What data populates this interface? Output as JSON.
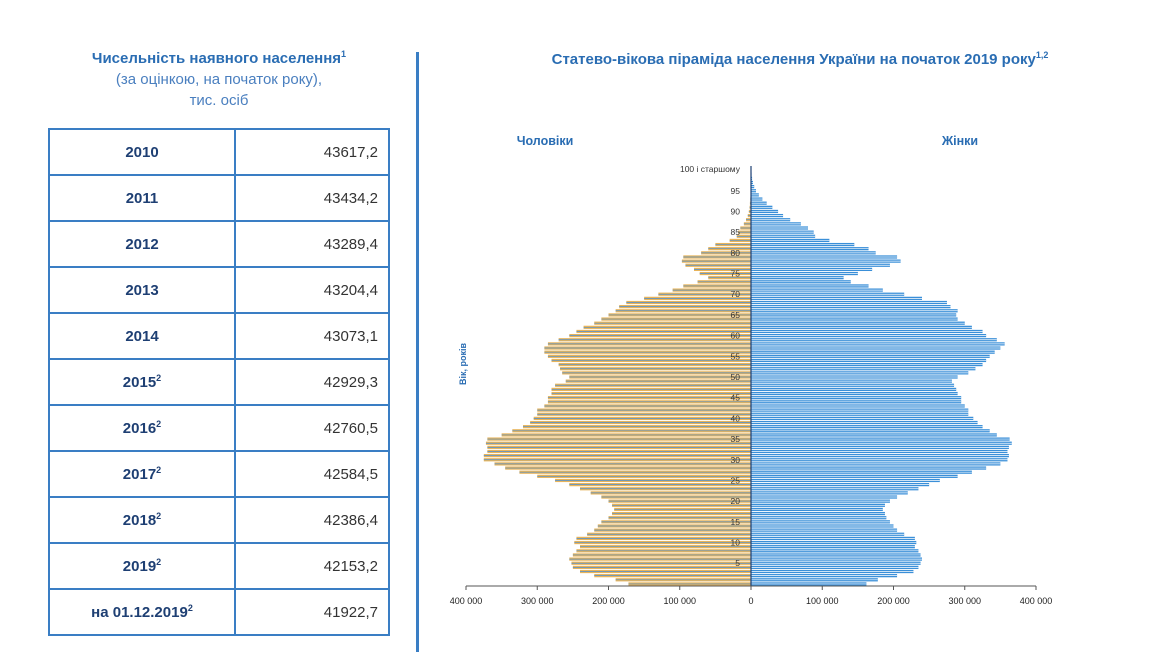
{
  "left": {
    "title_line1": "Чисельність наявного населення",
    "title_sup": "1",
    "title_line2": "(за оцінкою, на початок року),",
    "title_line3": "тис. осіб"
  },
  "table": {
    "rows": [
      {
        "year": "2010",
        "sup": "",
        "value": "43617,2"
      },
      {
        "year": "2011",
        "sup": "",
        "value": "43434,2"
      },
      {
        "year": "2012",
        "sup": "",
        "value": "43289,4"
      },
      {
        "year": "2013",
        "sup": "",
        "value": "43204,4"
      },
      {
        "year": "2014",
        "sup": "",
        "value": "43073,1"
      },
      {
        "year": "2015",
        "sup": "2",
        "value": "42929,3"
      },
      {
        "year": "2016",
        "sup": "2",
        "value": "42760,5"
      },
      {
        "year": "2017",
        "sup": "2",
        "value": "42584,5"
      },
      {
        "year": "2018",
        "sup": "2",
        "value": "42386,4"
      },
      {
        "year": "2019",
        "sup": "2",
        "value": "42153,2"
      },
      {
        "year": "на 01.12.2019",
        "sup": "2",
        "value": "41922,7"
      }
    ]
  },
  "colors": {
    "accent": "#2a6db3",
    "male_fill": "#e8b45a",
    "male_stripe": "#4a8ed4",
    "female_fill": "#3a8fd8",
    "female_stripe": "#ffffff"
  },
  "chart_data": {
    "type": "bar",
    "orientation": "horizontal-pyramid",
    "title": "Статево-вікова піраміда населення України на початок 2019 року",
    "title_sup": "1,2",
    "male_label": "Чоловіки",
    "female_label": "Жінки",
    "ylabel": "Вік, років",
    "top_age_label": "100 і старшому",
    "age_ticks": [
      "5",
      "10",
      "15",
      "20",
      "25",
      "30",
      "35",
      "40",
      "45",
      "50",
      "55",
      "60",
      "65",
      "70",
      "75",
      "80",
      "85",
      "90",
      "95"
    ],
    "x_ticks": [
      "400 000",
      "300 000",
      "200 000",
      "100 000",
      "0",
      "100 000",
      "200 000",
      "300 000",
      "400 000"
    ],
    "xlim": [
      -400000,
      400000
    ],
    "ages": [
      0,
      1,
      2,
      3,
      4,
      5,
      6,
      7,
      8,
      9,
      10,
      11,
      12,
      13,
      14,
      15,
      16,
      17,
      18,
      19,
      20,
      21,
      22,
      23,
      24,
      25,
      26,
      27,
      28,
      29,
      30,
      31,
      32,
      33,
      34,
      35,
      36,
      37,
      38,
      39,
      40,
      41,
      42,
      43,
      44,
      45,
      46,
      47,
      48,
      49,
      50,
      51,
      52,
      53,
      54,
      55,
      56,
      57,
      58,
      59,
      60,
      61,
      62,
      63,
      64,
      65,
      66,
      67,
      68,
      69,
      70,
      71,
      72,
      73,
      74,
      75,
      76,
      77,
      78,
      79,
      80,
      81,
      82,
      83,
      84,
      85,
      86,
      87,
      88,
      89,
      90,
      91,
      92,
      93,
      94,
      95,
      96,
      97,
      98,
      99,
      100
    ],
    "series": [
      {
        "name": "Чоловіки",
        "values": [
          172000,
          190000,
          220000,
          240000,
          250000,
          252000,
          255000,
          250000,
          245000,
          240000,
          248000,
          245000,
          230000,
          220000,
          215000,
          210000,
          200000,
          195000,
          192000,
          195000,
          200000,
          210000,
          225000,
          240000,
          255000,
          275000,
          300000,
          325000,
          345000,
          360000,
          375000,
          375000,
          370000,
          370000,
          372000,
          370000,
          350000,
          335000,
          320000,
          310000,
          305000,
          300000,
          300000,
          290000,
          285000,
          285000,
          280000,
          280000,
          275000,
          260000,
          255000,
          265000,
          268000,
          270000,
          280000,
          285000,
          290000,
          290000,
          285000,
          270000,
          255000,
          245000,
          235000,
          220000,
          210000,
          200000,
          190000,
          185000,
          175000,
          150000,
          130000,
          110000,
          95000,
          75000,
          60000,
          72000,
          80000,
          92000,
          97000,
          95000,
          70000,
          60000,
          50000,
          30000,
          20000,
          18000,
          15000,
          10000,
          7000,
          4500,
          3000,
          2000,
          1500,
          1000,
          600,
          400,
          250,
          150,
          100,
          50,
          40
        ]
      },
      {
        "name": "Жінки",
        "values": [
          162000,
          178000,
          205000,
          228000,
          235000,
          238000,
          240000,
          238000,
          235000,
          230000,
          232000,
          230000,
          215000,
          205000,
          200000,
          195000,
          190000,
          188000,
          185000,
          188000,
          195000,
          205000,
          220000,
          235000,
          250000,
          265000,
          290000,
          310000,
          330000,
          350000,
          360000,
          362000,
          360000,
          362000,
          366000,
          363000,
          345000,
          335000,
          325000,
          318000,
          312000,
          305000,
          305000,
          300000,
          295000,
          295000,
          290000,
          288000,
          285000,
          282000,
          290000,
          305000,
          315000,
          325000,
          330000,
          335000,
          342000,
          350000,
          356000,
          345000,
          330000,
          325000,
          310000,
          300000,
          290000,
          288000,
          290000,
          280000,
          275000,
          240000,
          215000,
          185000,
          165000,
          140000,
          130000,
          150000,
          170000,
          195000,
          210000,
          205000,
          175000,
          165000,
          145000,
          110000,
          90000,
          88000,
          80000,
          70000,
          55000,
          45000,
          38000,
          30000,
          22000,
          16000,
          11000,
          7000,
          4500,
          2800,
          1500,
          800,
          600
        ]
      }
    ]
  }
}
